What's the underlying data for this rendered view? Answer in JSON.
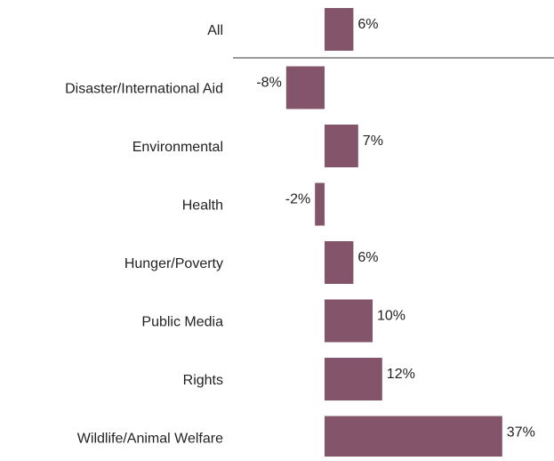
{
  "chart_data": {
    "type": "bar",
    "orientation": "horizontal",
    "categories": [
      "All",
      "Disaster/International Aid",
      "Environmental",
      "Health",
      "Hunger/Poverty",
      "Public Media",
      "Rights",
      "Wildlife/Animal Welfare"
    ],
    "values": [
      6,
      -8,
      7,
      -2,
      6,
      10,
      12,
      37
    ],
    "value_labels": [
      "6%",
      "-8%",
      "7%",
      "-2%",
      "6%",
      "10%",
      "12%",
      "37%"
    ],
    "unit": "%",
    "bar_color": "#84546A",
    "separator_after_first": true,
    "separator_color": "#7a7a7a",
    "grid": false,
    "legend": "none"
  }
}
